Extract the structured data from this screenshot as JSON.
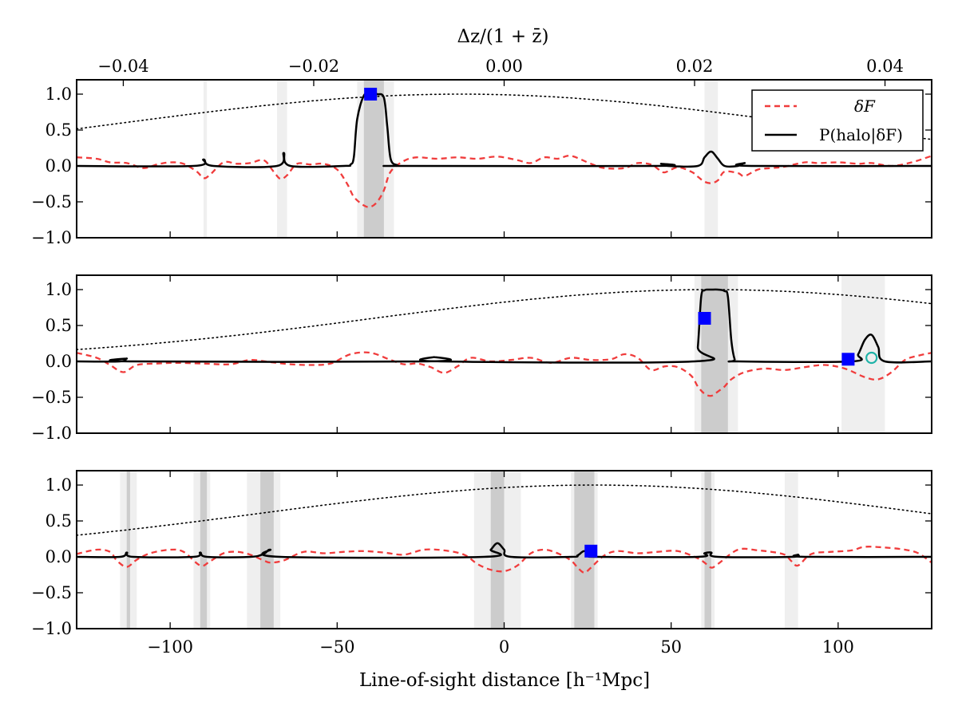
{
  "chart_data": {
    "type": "line",
    "top_axis": {
      "label": "Δz/(1 + z̄)",
      "ticks": [
        {
          "value": -0.04,
          "label": "−0.04"
        },
        {
          "value": -0.02,
          "label": "−0.02"
        },
        {
          "value": 0.0,
          "label": "0.00"
        },
        {
          "value": 0.02,
          "label": "0.02"
        },
        {
          "value": 0.04,
          "label": "0.04"
        }
      ],
      "xlim": [
        -0.0449,
        0.0449
      ]
    },
    "x_axis": {
      "label": "Line-of-sight distance [h⁻¹Mpc]",
      "ticks": [
        {
          "value": -100,
          "label": "−100"
        },
        {
          "value": -50,
          "label": "−50"
        },
        {
          "value": 0,
          "label": "0"
        },
        {
          "value": 50,
          "label": "50"
        },
        {
          "value": 100,
          "label": "100"
        }
      ],
      "xlim": [
        -128,
        128
      ]
    },
    "y_axis": {
      "ylim": [
        -1.0,
        1.2
      ],
      "ticks": [
        {
          "value": 1.0,
          "label": "1.0"
        },
        {
          "value": 0.5,
          "label": "0.5"
        },
        {
          "value": 0.0,
          "label": "0.0"
        },
        {
          "value": -0.5,
          "label": "−0.5"
        },
        {
          "value": -1.0,
          "label": "−1.0"
        }
      ]
    },
    "legend": {
      "placement": "top-right of first panel",
      "entries": [
        {
          "label": "δF",
          "style": "dashed",
          "color": "#f03c3c"
        },
        {
          "label": "P(halo|δF)",
          "style": "solid",
          "color": "#000000"
        }
      ]
    },
    "colors": {
      "delta_f": "#f03c3c",
      "probability": "#000000",
      "window": "#000000",
      "halo_marker": "#0000ff",
      "halo_open_marker": "#1fb3a8",
      "band_dark": "#cccccc",
      "band_light": "#efefef"
    },
    "panels": [
      {
        "window_center": -13,
        "window_sigma": 100,
        "bands": [
          {
            "from": -90,
            "to": -89,
            "shade": "light"
          },
          {
            "from": -68,
            "to": -65,
            "shade": "light"
          },
          {
            "from": -44,
            "to": -33,
            "shade": "light"
          },
          {
            "from": -42,
            "to": -36,
            "shade": "dark"
          },
          {
            "from": 60,
            "to": 64,
            "shade": "light"
          }
        ],
        "delta_f": {
          "x": [
            -128,
            -122,
            -118,
            -113,
            -108,
            -104,
            -100,
            -96,
            -92,
            -90,
            -88,
            -84,
            -80,
            -76,
            -72,
            -69,
            -67,
            -65,
            -62,
            -58,
            -54,
            -50,
            -47,
            -45,
            -42,
            -40,
            -38,
            -36,
            -34,
            -30,
            -26,
            -20,
            -14,
            -8,
            -2,
            4,
            8,
            12,
            16,
            20,
            26,
            30,
            36,
            40,
            44,
            46,
            48,
            52,
            56,
            58,
            60,
            62,
            64,
            66,
            70,
            72,
            76,
            80,
            84,
            90,
            94,
            100,
            106,
            110,
            116,
            122,
            128
          ],
          "y": [
            0.12,
            0.1,
            0.05,
            0.04,
            -0.03,
            0.02,
            0.05,
            0.03,
            -0.08,
            -0.17,
            -0.12,
            0.05,
            0.03,
            0.04,
            0.08,
            -0.08,
            -0.18,
            -0.13,
            0.03,
            0.02,
            0.03,
            -0.05,
            -0.25,
            -0.43,
            -0.55,
            -0.57,
            -0.5,
            -0.34,
            -0.08,
            0.07,
            0.12,
            0.1,
            0.12,
            0.1,
            0.13,
            0.08,
            0.04,
            0.12,
            0.1,
            0.14,
            0.03,
            -0.03,
            -0.03,
            0.04,
            0.02,
            -0.04,
            -0.09,
            -0.02,
            -0.08,
            -0.15,
            -0.22,
            -0.24,
            -0.2,
            -0.08,
            -0.1,
            -0.14,
            -0.05,
            -0.03,
            -0.01,
            0.05,
            0.04,
            0.05,
            0.03,
            0.04,
            0.0,
            0.05,
            0.14
          ]
        },
        "probability": {
          "x": [
            -128,
            -93,
            -90,
            -87,
            -68,
            -66,
            -64,
            -48,
            -46,
            -45,
            -44,
            -42,
            -40,
            -38,
            -36,
            -35,
            -34,
            -32,
            -30,
            45,
            47,
            49,
            58,
            60,
            62,
            64,
            66,
            70,
            72,
            74,
            128
          ],
          "y": [
            0.0,
            0.0,
            0.09,
            0.0,
            0.0,
            0.18,
            0.0,
            0.0,
            0.02,
            0.12,
            0.65,
            0.98,
            1.0,
            1.0,
            0.95,
            0.55,
            0.1,
            0.01,
            0.0,
            0.0,
            0.03,
            0.0,
            0.0,
            0.12,
            0.2,
            0.1,
            0.0,
            0.0,
            0.04,
            0.0,
            0.0
          ]
        },
        "halos": [
          {
            "x": -40,
            "y": 1.0,
            "type": "filled"
          }
        ]
      },
      {
        "window_center": 62,
        "window_sigma": 100,
        "bands": [
          {
            "from": 57,
            "to": 70,
            "shade": "light"
          },
          {
            "from": 59,
            "to": 67,
            "shade": "dark"
          },
          {
            "from": 101,
            "to": 114,
            "shade": "light"
          }
        ],
        "delta_f": {
          "x": [
            -128,
            -122,
            -118,
            -114,
            -110,
            -104,
            -98,
            -90,
            -82,
            -76,
            -70,
            -64,
            -58,
            -52,
            -46,
            -40,
            -34,
            -30,
            -26,
            -22,
            -18,
            -14,
            -10,
            -4,
            2,
            8,
            14,
            20,
            26,
            32,
            36,
            40,
            44,
            48,
            52,
            56,
            58,
            60,
            62,
            64,
            66,
            68,
            72,
            78,
            84,
            90,
            96,
            102,
            108,
            112,
            116,
            120,
            124,
            128
          ],
          "y": [
            0.12,
            0.05,
            -0.05,
            -0.15,
            -0.05,
            -0.03,
            -0.02,
            -0.03,
            -0.04,
            0.02,
            -0.01,
            -0.04,
            -0.05,
            -0.03,
            0.1,
            0.12,
            0.02,
            -0.04,
            -0.03,
            -0.08,
            -0.16,
            -0.07,
            0.05,
            0.0,
            0.02,
            0.05,
            -0.02,
            0.05,
            0.02,
            0.03,
            0.1,
            0.05,
            -0.12,
            -0.07,
            -0.08,
            -0.2,
            -0.35,
            -0.45,
            -0.48,
            -0.42,
            -0.35,
            -0.25,
            -0.15,
            -0.1,
            -0.12,
            -0.08,
            -0.05,
            -0.1,
            -0.22,
            -0.25,
            -0.15,
            0.02,
            0.08,
            0.12
          ]
        },
        "probability": {
          "x": [
            -128,
            -115,
            -113,
            -111,
            -23,
            -21,
            -19,
            57,
            58,
            59,
            60,
            61,
            62,
            64,
            66,
            67,
            68,
            69,
            70,
            104,
            106,
            108,
            110,
            112,
            114,
            128
          ],
          "y": [
            0.0,
            0.0,
            0.04,
            0.0,
            0.0,
            0.06,
            0.0,
            0.0,
            0.2,
            0.9,
            0.99,
            1.0,
            1.0,
            1.0,
            0.98,
            0.9,
            0.3,
            0.03,
            0.0,
            0.0,
            0.1,
            0.3,
            0.37,
            0.2,
            0.0,
            0.0
          ]
        },
        "halos": [
          {
            "x": 60,
            "y": 0.6,
            "type": "filled"
          },
          {
            "x": 103,
            "y": 0.03,
            "type": "filled"
          },
          {
            "x": 110,
            "y": 0.05,
            "type": "open"
          }
        ]
      },
      {
        "window_center": 27,
        "window_sigma": 100,
        "bands": [
          {
            "from": -115,
            "to": -110,
            "shade": "light"
          },
          {
            "from": -113,
            "to": -112,
            "shade": "dark"
          },
          {
            "from": -93,
            "to": -88,
            "shade": "light"
          },
          {
            "from": -91,
            "to": -89,
            "shade": "dark"
          },
          {
            "from": -77,
            "to": -67,
            "shade": "light"
          },
          {
            "from": -73,
            "to": -69,
            "shade": "dark"
          },
          {
            "from": -9,
            "to": 5,
            "shade": "light"
          },
          {
            "from": -4,
            "to": 0,
            "shade": "dark"
          },
          {
            "from": 20,
            "to": 28,
            "shade": "light"
          },
          {
            "from": 21,
            "to": 27,
            "shade": "dark"
          },
          {
            "from": 59,
            "to": 63,
            "shade": "light"
          },
          {
            "from": 60,
            "to": 62,
            "shade": "dark"
          },
          {
            "from": 84,
            "to": 88,
            "shade": "light"
          }
        ],
        "delta_f": {
          "x": [
            -128,
            -122,
            -118,
            -116,
            -113,
            -110,
            -106,
            -100,
            -96,
            -91,
            -88,
            -84,
            -80,
            -76,
            -72,
            -70,
            -66,
            -60,
            -54,
            -48,
            -42,
            -36,
            -30,
            -24,
            -18,
            -12,
            -8,
            -4,
            0,
            4,
            8,
            12,
            16,
            20,
            22,
            24,
            26,
            30,
            34,
            40,
            46,
            52,
            58,
            60,
            62,
            64,
            70,
            76,
            80,
            84,
            86,
            88,
            92,
            98,
            104,
            108,
            114,
            120,
            124,
            128
          ],
          "y": [
            0.04,
            0.1,
            0.07,
            -0.05,
            -0.14,
            -0.04,
            0.05,
            0.1,
            0.07,
            -0.12,
            -0.06,
            0.05,
            0.07,
            0.03,
            -0.05,
            -0.08,
            -0.05,
            0.07,
            0.05,
            0.07,
            0.08,
            0.06,
            0.03,
            0.1,
            0.09,
            0.03,
            -0.1,
            -0.18,
            -0.2,
            -0.12,
            0.05,
            0.1,
            0.05,
            -0.05,
            -0.15,
            -0.22,
            -0.15,
            0.02,
            0.08,
            0.05,
            0.07,
            0.08,
            -0.02,
            -0.08,
            -0.15,
            -0.1,
            0.1,
            0.09,
            0.07,
            0.03,
            -0.06,
            -0.12,
            0.04,
            0.07,
            0.09,
            0.14,
            0.13,
            0.1,
            0.05,
            -0.08
          ]
        },
        "probability": {
          "x": [
            -128,
            -115,
            -113,
            -111,
            -93,
            -91,
            -89,
            -76,
            -72,
            -70,
            -67,
            -6,
            -4,
            -2,
            0,
            2,
            20,
            22,
            24,
            26,
            28,
            58,
            60,
            62,
            64,
            86,
            88,
            90,
            128
          ],
          "y": [
            0.0,
            0.0,
            0.06,
            0.0,
            0.0,
            0.06,
            0.0,
            0.0,
            0.04,
            0.1,
            0.0,
            0.0,
            0.1,
            0.19,
            0.1,
            0.0,
            0.0,
            0.02,
            0.08,
            0.02,
            0.0,
            0.0,
            0.05,
            0.06,
            0.0,
            0.0,
            0.03,
            0.0,
            0.0
          ]
        },
        "halos": [
          {
            "x": 26,
            "y": 0.08,
            "type": "filled"
          }
        ]
      }
    ]
  }
}
